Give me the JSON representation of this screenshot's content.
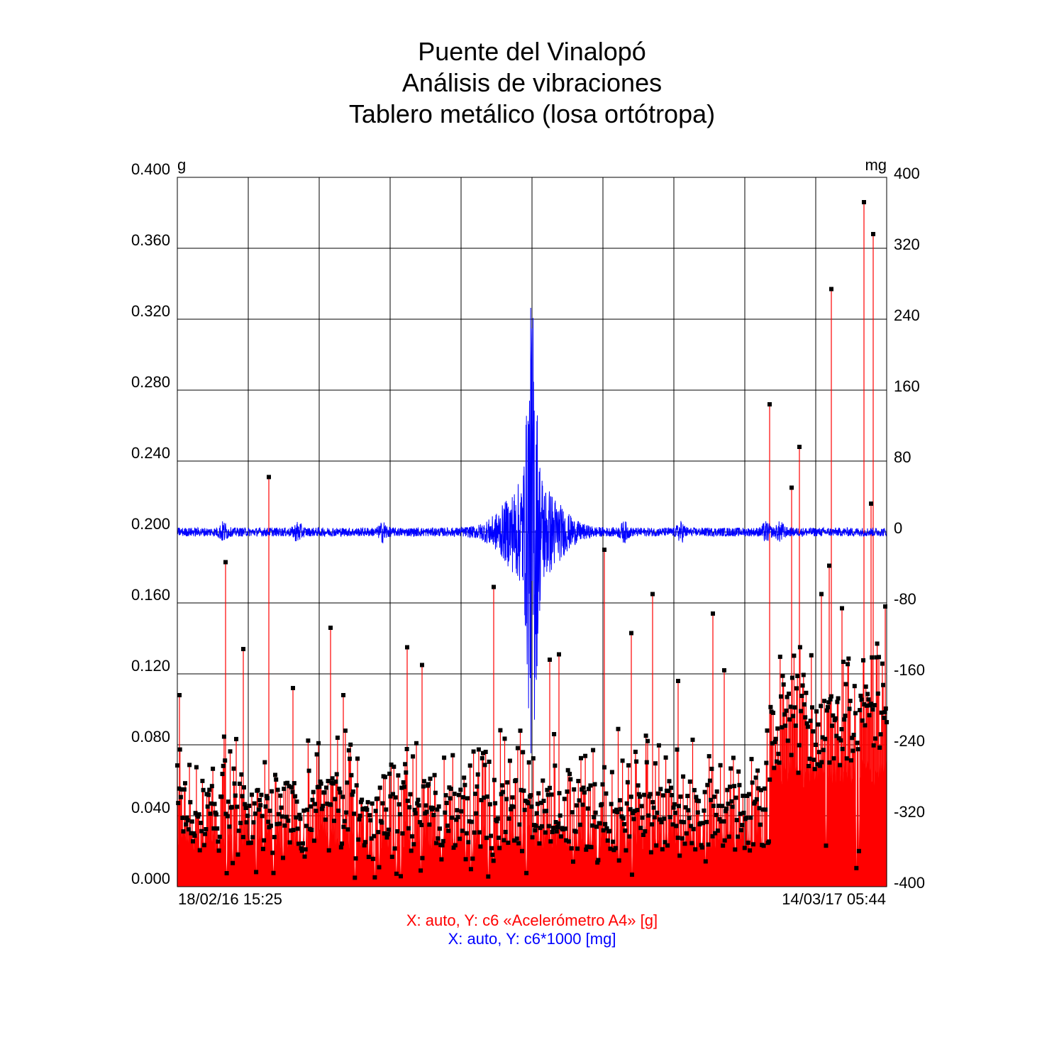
{
  "chart_data": {
    "type": "bar",
    "title": [
      "Puente del Vinalopó",
      "Análisis de vibraciones",
      "Tablero metálico (losa ortótropa)"
    ],
    "left_axis": {
      "unit": "g",
      "ylim": [
        0,
        0.4
      ],
      "ticks": [
        "0.000",
        "0.040",
        "0.080",
        "0.120",
        "0.160",
        "0.200",
        "0.240",
        "0.280",
        "0.320",
        "0.360",
        "0.400"
      ]
    },
    "right_axis": {
      "unit": "mg",
      "ylim": [
        -400,
        400
      ],
      "ticks": [
        "-400",
        "-320",
        "-240",
        "-160",
        "-80",
        "0",
        "80",
        "160",
        "240",
        "320",
        "400"
      ]
    },
    "x_labels": {
      "start": "18/02/16 15:25",
      "end": "14/03/17 05:44"
    },
    "grid": true,
    "grid_columns": 10,
    "grid_rows": 10,
    "colors": {
      "series1": "#ff0000",
      "series2": "#0000ff",
      "markers": "#000000",
      "grid": "#000000"
    },
    "series": [
      {
        "name": "X: auto,  Y: c6 «Acelerómetro A4» [g]",
        "axis": "left",
        "color": "#ff0000",
        "style": "vertical lines with square markers",
        "peaks": [
          {
            "x": 0.003,
            "y": 0.108
          },
          {
            "x": 0.068,
            "y": 0.183
          },
          {
            "x": 0.093,
            "y": 0.134
          },
          {
            "x": 0.129,
            "y": 0.231
          },
          {
            "x": 0.163,
            "y": 0.112
          },
          {
            "x": 0.216,
            "y": 0.146
          },
          {
            "x": 0.234,
            "y": 0.108
          },
          {
            "x": 0.324,
            "y": 0.135
          },
          {
            "x": 0.345,
            "y": 0.125
          },
          {
            "x": 0.446,
            "y": 0.169
          },
          {
            "x": 0.525,
            "y": 0.128
          },
          {
            "x": 0.538,
            "y": 0.131
          },
          {
            "x": 0.602,
            "y": 0.19
          },
          {
            "x": 0.64,
            "y": 0.143
          },
          {
            "x": 0.67,
            "y": 0.165
          },
          {
            "x": 0.706,
            "y": 0.116
          },
          {
            "x": 0.755,
            "y": 0.154
          },
          {
            "x": 0.771,
            "y": 0.122
          },
          {
            "x": 0.835,
            "y": 0.272
          },
          {
            "x": 0.866,
            "y": 0.225
          },
          {
            "x": 0.877,
            "y": 0.248
          },
          {
            "x": 0.908,
            "y": 0.165
          },
          {
            "x": 0.919,
            "y": 0.181
          },
          {
            "x": 0.922,
            "y": 0.337
          },
          {
            "x": 0.937,
            "y": 0.157
          },
          {
            "x": 0.968,
            "y": 0.386
          },
          {
            "x": 0.978,
            "y": 0.216
          },
          {
            "x": 0.981,
            "y": 0.368
          },
          {
            "x": 0.998,
            "y": 0.158
          }
        ],
        "baseline_level_before": 0.04,
        "baseline_level_after": 0.08,
        "level_change_x": 0.835
      },
      {
        "name": "X: auto,  Y: c6*1000 [mg]",
        "axis": "right",
        "color": "#0000ff",
        "style": "dense line",
        "peak_center_x": 0.5,
        "peak_max": 262,
        "peak_min": -262,
        "noise_amplitude": 5
      }
    ]
  }
}
